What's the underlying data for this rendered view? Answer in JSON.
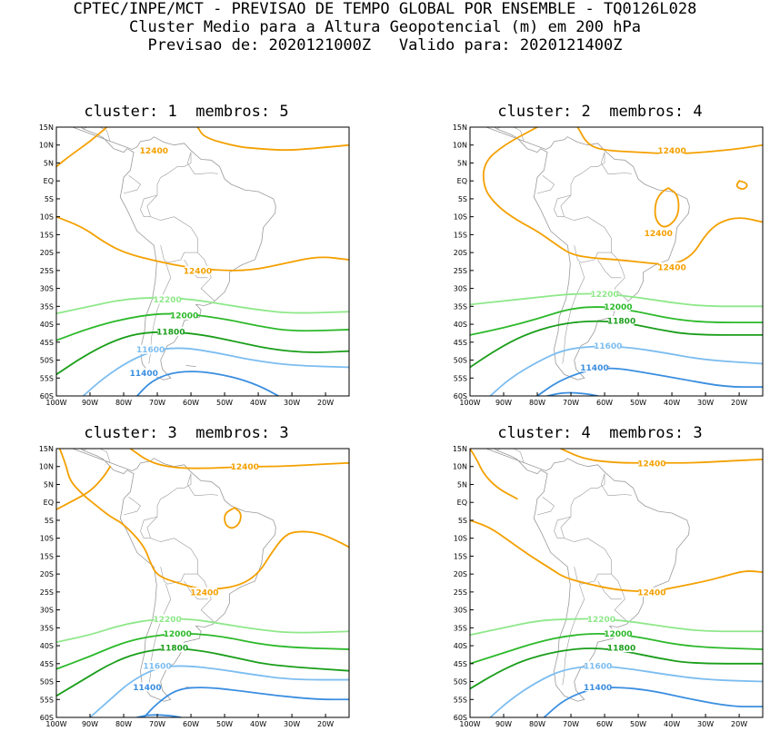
{
  "header": {
    "line1": "CPTEC/INPE/MCT - PREVISAO DE TEMPO GLOBAL POR ENSEMBLE - TQ0126L028",
    "line2": "Cluster Medio para a Altura Geopotencial (m) em 200 hPa",
    "line3": "Previsao de: 2020121000Z   Valido para: 2020121400Z"
  },
  "colors": {
    "12400": "#f4a000",
    "12200": "#8fe88a",
    "12000": "#2cb92a",
    "11800": "#1a9e1a",
    "11600": "#7cbdf0",
    "11400": "#3a8ee0",
    "map": "#9a9a9a"
  },
  "axes": {
    "lat_labels": [
      "15N",
      "10N",
      "5N",
      "EQ",
      "5S",
      "10S",
      "15S",
      "20S",
      "25S",
      "30S",
      "35S",
      "40S",
      "45S",
      "50S",
      "55S",
      "60S"
    ],
    "lon_labels": [
      "100W",
      "90W",
      "80W",
      "70W",
      "60W",
      "50W",
      "40W",
      "30W",
      "20W"
    ]
  },
  "panels": [
    {
      "title": "cluster: 1  membros: 5",
      "labels": [
        {
          "text": "12400",
          "color_key": "12400",
          "lon": -71,
          "lat": 8.5
        },
        {
          "text": "12400",
          "color_key": "12400",
          "lon": -58,
          "lat": -25
        },
        {
          "text": "12200",
          "color_key": "12200",
          "lon": -67,
          "lat": -33
        },
        {
          "text": "12000",
          "color_key": "12000",
          "lon": -62,
          "lat": -37.5
        },
        {
          "text": "11800",
          "color_key": "11800",
          "lon": -66,
          "lat": -42
        },
        {
          "text": "11600",
          "color_key": "11600",
          "lon": -72,
          "lat": -47
        },
        {
          "text": "11400",
          "color_key": "11400",
          "lon": -74,
          "lat": -53.5
        }
      ]
    },
    {
      "title": "cluster: 2  membros: 4",
      "labels": [
        {
          "text": "12400",
          "color_key": "12400",
          "lon": -40,
          "lat": 8.5
        },
        {
          "text": "12400",
          "color_key": "12400",
          "lon": -44,
          "lat": -14.5
        },
        {
          "text": "12400",
          "color_key": "12400",
          "lon": -40,
          "lat": -24
        },
        {
          "text": "12200",
          "color_key": "12200",
          "lon": -60,
          "lat": -31.5
        },
        {
          "text": "12000",
          "color_key": "12000",
          "lon": -56,
          "lat": -35
        },
        {
          "text": "11800",
          "color_key": "11800",
          "lon": -55,
          "lat": -39
        },
        {
          "text": "11600",
          "color_key": "11600",
          "lon": -59,
          "lat": -46
        },
        {
          "text": "11400",
          "color_key": "11400",
          "lon": -63,
          "lat": -52
        }
      ]
    },
    {
      "title": "cluster: 3  membros: 3",
      "labels": [
        {
          "text": "12400",
          "color_key": "12400",
          "lon": -44,
          "lat": 10
        },
        {
          "text": "12400",
          "color_key": "12400",
          "lon": -56,
          "lat": -25
        },
        {
          "text": "12200",
          "color_key": "12200",
          "lon": -67,
          "lat": -32.5
        },
        {
          "text": "12000",
          "color_key": "12000",
          "lon": -64,
          "lat": -36.5
        },
        {
          "text": "11800",
          "color_key": "11800",
          "lon": -65,
          "lat": -40.5
        },
        {
          "text": "11600",
          "color_key": "11600",
          "lon": -70,
          "lat": -45.5
        },
        {
          "text": "11400",
          "color_key": "11400",
          "lon": -73,
          "lat": -51.5
        }
      ]
    },
    {
      "title": "cluster: 4  membros: 3",
      "labels": [
        {
          "text": "12400",
          "color_key": "12400",
          "lon": -46,
          "lat": 11
        },
        {
          "text": "12400",
          "color_key": "12400",
          "lon": -46,
          "lat": -25
        },
        {
          "text": "12200",
          "color_key": "12200",
          "lon": -61,
          "lat": -32.5
        },
        {
          "text": "12000",
          "color_key": "12000",
          "lon": -56,
          "lat": -36.5
        },
        {
          "text": "11800",
          "color_key": "11800",
          "lon": -55,
          "lat": -40.5
        },
        {
          "text": "11600",
          "color_key": "11600",
          "lon": -62,
          "lat": -45.5
        },
        {
          "text": "11400",
          "color_key": "11400",
          "lon": -62,
          "lat": -51.5
        }
      ]
    }
  ]
}
